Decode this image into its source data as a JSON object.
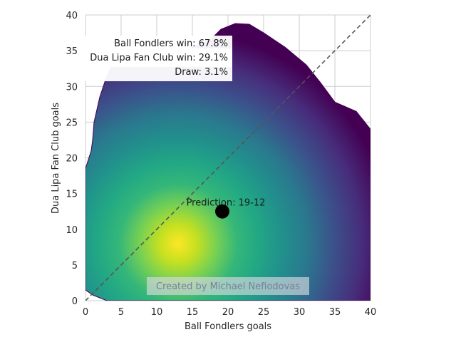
{
  "chart_data": {
    "type": "heatmap",
    "subtype": "kde-density-with-scatter",
    "xlabel": "Ball Fondlers goals",
    "ylabel": "Dua Lipa Fan Club goals",
    "xlim": [
      0,
      40
    ],
    "ylim": [
      0,
      40
    ],
    "xticks": [
      0,
      5,
      10,
      15,
      20,
      25,
      30,
      35,
      40
    ],
    "yticks": [
      0,
      5,
      10,
      15,
      20,
      25,
      30,
      35,
      40
    ],
    "grid": true,
    "colormap": "viridis",
    "density_peak": {
      "x": 13,
      "y": 8
    },
    "density_outline": [
      [
        0,
        1.5
      ],
      [
        0,
        18.5
      ],
      [
        0.8,
        21
      ],
      [
        1,
        22.5
      ],
      [
        1.2,
        25
      ],
      [
        2,
        28.5
      ],
      [
        3,
        31.5
      ],
      [
        4,
        33.5
      ],
      [
        5,
        34.5
      ],
      [
        10,
        34.8
      ],
      [
        14,
        35
      ],
      [
        17.5,
        36.5
      ],
      [
        19,
        38
      ],
      [
        21,
        38.8
      ],
      [
        23,
        38.7
      ],
      [
        25,
        37.5
      ],
      [
        28,
        35.5
      ],
      [
        31,
        33
      ],
      [
        33,
        30.5
      ],
      [
        35,
        27.8
      ],
      [
        38,
        26.5
      ],
      [
        40,
        24
      ],
      [
        40,
        0
      ],
      [
        3,
        0
      ],
      [
        1,
        0.8
      ]
    ],
    "diagonal": {
      "from": [
        0,
        0
      ],
      "to": [
        40,
        40
      ],
      "style": "dashed",
      "color": "#555555"
    },
    "prediction_point": {
      "x": 19.2,
      "y": 12.5,
      "label": "Prediction: 19-12",
      "color": "#000000"
    },
    "probabilities": [
      "Ball Fondlers win: 67.8%",
      "Dua Lipa Fan Club win: 29.1%",
      "Draw: 3.1%"
    ],
    "watermark": "Created by Michael Nefiodovas"
  }
}
